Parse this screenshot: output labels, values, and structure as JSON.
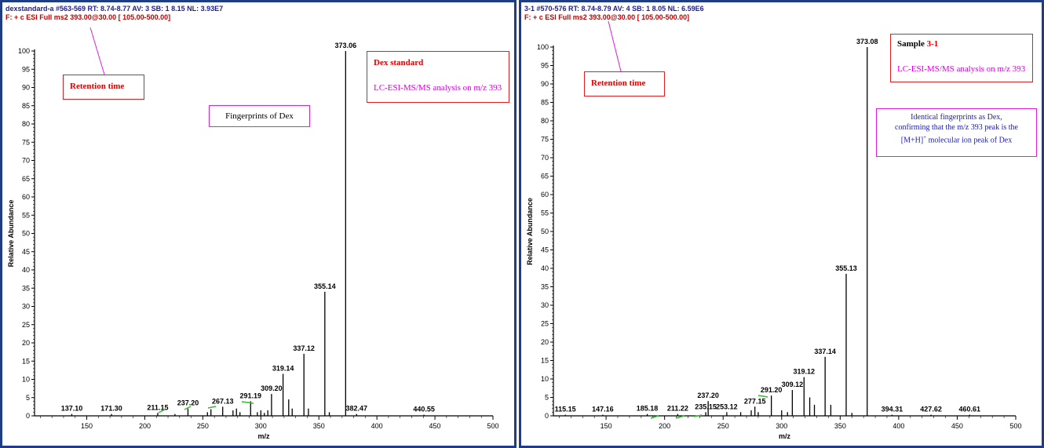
{
  "panels": [
    {
      "header_line1": "dexstandard-a #563-569  RT: 8.74-8.77  AV: 3  SB: 1  8.15  NL: 3.93E7",
      "header_line2": "F: + c ESI Full ms2 393.00@30.00 [ 105.00-500.00]",
      "retention_label": "Retention time",
      "box1_line1": "Dex standard",
      "box1_line2": "LC-ESI-MS/MS analysis on m/z 393",
      "box2_text": "Fingerprints of Dex"
    },
    {
      "header_line1": "3-1 #570-576  RT: 8.74-8.79  AV: 4  SB: 1  8.05  NL: 6.59E6",
      "header_line2": "F: + c ESI Full ms2 393.00@30.00 [ 105.00-500.00]",
      "retention_label": "Retention time",
      "box1_line1_a": "Sample ",
      "box1_line1_b": "3-1",
      "box1_line2": "LC-ESI-MS/MS analysis on m/z 393",
      "box2_line1": "Identical fingerprints as Dex,",
      "box2_line2": "confirming that the m/z 393 peak is the",
      "box2_line3": "[M+H]",
      "box2_line3_sup": "+",
      "box2_line3_tail": " molecular ion peak of Dex"
    }
  ],
  "colors": {
    "frame": "#1f3c88",
    "red": "#e02020",
    "magenta": "#e020e0",
    "blue_text": "#1c1cb0",
    "green": "#33bb33"
  },
  "chart_data": [
    {
      "type": "bar",
      "xlabel": "m/z",
      "ylabel": "Relative Abundance",
      "xlim": [
        105,
        500
      ],
      "ylim": [
        0,
        100
      ],
      "xticks": [
        150,
        200,
        250,
        300,
        350,
        400,
        450,
        500
      ],
      "yticks": [
        0,
        5,
        10,
        15,
        20,
        25,
        30,
        35,
        40,
        45,
        50,
        55,
        60,
        65,
        70,
        75,
        80,
        85,
        90,
        95,
        100
      ],
      "peaks": [
        {
          "x": 137.1,
          "y": 0.5,
          "label": "137.10"
        },
        {
          "x": 171.3,
          "y": 0.5,
          "label": "171.30"
        },
        {
          "x": 211.15,
          "y": 0.8,
          "label": "211.15"
        },
        {
          "x": 237.2,
          "y": 2.0,
          "label": "237.20"
        },
        {
          "x": 267.13,
          "y": 2.5,
          "label": "267.13"
        },
        {
          "x": 291.19,
          "y": 4.0,
          "label": "291.19"
        },
        {
          "x": 309.2,
          "y": 6.0,
          "label": "309.20"
        },
        {
          "x": 319.14,
          "y": 11.5,
          "label": "319.14"
        },
        {
          "x": 337.12,
          "y": 17.0,
          "label": "337.12"
        },
        {
          "x": 355.14,
          "y": 34.0,
          "label": "355.14"
        },
        {
          "x": 373.06,
          "y": 100,
          "label": "373.06"
        },
        {
          "x": 382.47,
          "y": 0.5,
          "label": "382.47"
        },
        {
          "x": 440.55,
          "y": 0.3,
          "label": "440.55"
        },
        {
          "x": 226,
          "y": 0.5
        },
        {
          "x": 254,
          "y": 1.0
        },
        {
          "x": 257,
          "y": 1.8
        },
        {
          "x": 276,
          "y": 1.5
        },
        {
          "x": 279,
          "y": 2.0
        },
        {
          "x": 282,
          "y": 1.0
        },
        {
          "x": 297,
          "y": 1.0
        },
        {
          "x": 300,
          "y": 1.5
        },
        {
          "x": 303,
          "y": 0.8
        },
        {
          "x": 306,
          "y": 1.5
        },
        {
          "x": 324,
          "y": 4.5
        },
        {
          "x": 327,
          "y": 2.0
        },
        {
          "x": 341,
          "y": 2.0
        },
        {
          "x": 359,
          "y": 1.0
        }
      ]
    },
    {
      "type": "bar",
      "xlabel": "m/z",
      "ylabel": "Relative Abundance",
      "xlim": [
        105,
        500
      ],
      "ylim": [
        0,
        100
      ],
      "xticks": [
        150,
        200,
        250,
        300,
        350,
        400,
        450,
        500
      ],
      "yticks": [
        0,
        5,
        10,
        15,
        20,
        25,
        30,
        35,
        40,
        45,
        50,
        55,
        60,
        65,
        70,
        75,
        80,
        85,
        90,
        95,
        100
      ],
      "peaks": [
        {
          "x": 115.15,
          "y": 0.3,
          "label": "115.15"
        },
        {
          "x": 147.16,
          "y": 0.3,
          "label": "147.16"
        },
        {
          "x": 185.18,
          "y": 0.5,
          "label": "185.18"
        },
        {
          "x": 211.22,
          "y": 0.5,
          "label": "211.22"
        },
        {
          "x": 235.15,
          "y": 1.0,
          "label": "235.15"
        },
        {
          "x": 237.2,
          "y": 4.0,
          "label": "237.20"
        },
        {
          "x": 253.12,
          "y": 1.0,
          "label": "253.12"
        },
        {
          "x": 277.15,
          "y": 2.5,
          "label": "277.15"
        },
        {
          "x": 291.2,
          "y": 5.5,
          "label": "291.20"
        },
        {
          "x": 309.12,
          "y": 7.0,
          "label": "309.12"
        },
        {
          "x": 319.12,
          "y": 10.5,
          "label": "319.12"
        },
        {
          "x": 337.14,
          "y": 16.0,
          "label": "337.14"
        },
        {
          "x": 355.13,
          "y": 38.5,
          "label": "355.13"
        },
        {
          "x": 373.08,
          "y": 100,
          "label": "373.08"
        },
        {
          "x": 394.31,
          "y": 0.3,
          "label": "394.31"
        },
        {
          "x": 427.62,
          "y": 0.3,
          "label": "427.62"
        },
        {
          "x": 460.61,
          "y": 0.3,
          "label": "460.61"
        },
        {
          "x": 265,
          "y": 1.0
        },
        {
          "x": 274,
          "y": 1.5
        },
        {
          "x": 280,
          "y": 1.0
        },
        {
          "x": 300,
          "y": 1.5
        },
        {
          "x": 305,
          "y": 1.0
        },
        {
          "x": 324,
          "y": 5.0
        },
        {
          "x": 328,
          "y": 3.0
        },
        {
          "x": 342,
          "y": 3.0
        },
        {
          "x": 360,
          "y": 0.8
        }
      ]
    }
  ]
}
